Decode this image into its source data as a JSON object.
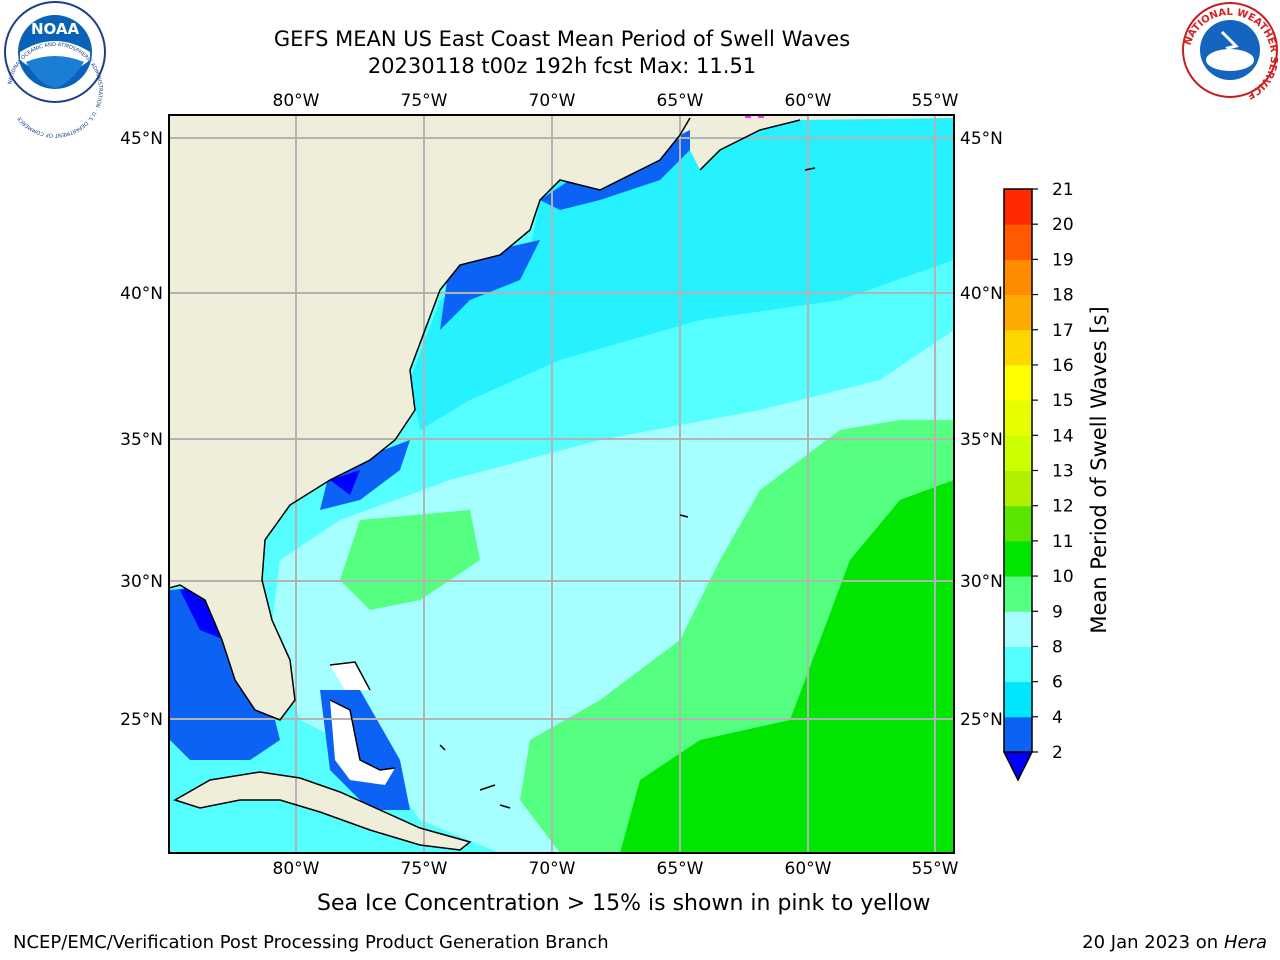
{
  "title": {
    "line1": "GEFS MEAN US East Coast Mean Period of Swell Waves",
    "line2": "20230118 t00z 192h fcst   Max: 11.51"
  },
  "map": {
    "lon_labels_top": [
      "80°W",
      "75°W",
      "70°W",
      "65°W",
      "60°W",
      "55°W"
    ],
    "lon_labels_bottom": [
      "80°W",
      "75°W",
      "70°W",
      "65°W",
      "60°W",
      "55°W"
    ],
    "lat_labels_left": [
      "45°N",
      "40°N",
      "35°N",
      "30°N",
      "25°N"
    ],
    "lat_labels_right": [
      "45°N",
      "40°N",
      "35°N",
      "30°N",
      "25°N"
    ],
    "colors": {
      "land": "#efeedb",
      "grid": "#b3b3b3",
      "coast": "#000000"
    }
  },
  "colorbar": {
    "title": "Mean Period of Swell Waves [s]",
    "tick_labels": [
      "2",
      "4",
      "6",
      "8",
      "9",
      "10",
      "11",
      "12",
      "13",
      "14",
      "15",
      "16",
      "17",
      "18",
      "19",
      "20",
      "21"
    ],
    "colors": [
      "#0b62f4",
      "#00e6ff",
      "#55ffff",
      "#a6ffff",
      "#55ff7f",
      "#00e600",
      "#5ae600",
      "#b3f000",
      "#ccff00",
      "#e6ff00",
      "#ffff00",
      "#ffd700",
      "#ffaa00",
      "#ff8c00",
      "#ff5a00",
      "#ff2a00",
      "#ff0000"
    ],
    "underflow_color": "#0000ff"
  },
  "caption": "Sea Ice Concentration > 15% is shown in pink to yellow",
  "footer": {
    "left": "NCEP/EMC/Verification Post Processing Product Generation Branch",
    "right_date": "20 Jan 2023 on ",
    "right_host": "Hera"
  },
  "logos": {
    "left_text": "NOAA",
    "left_ring_text": "NATIONAL OCEANIC AND ATMOSPHERIC ADMINISTRATION · U.S. DEPARTMENT OF COMMERCE",
    "right_ring_text": "NATIONAL WEATHER SERVICE"
  }
}
